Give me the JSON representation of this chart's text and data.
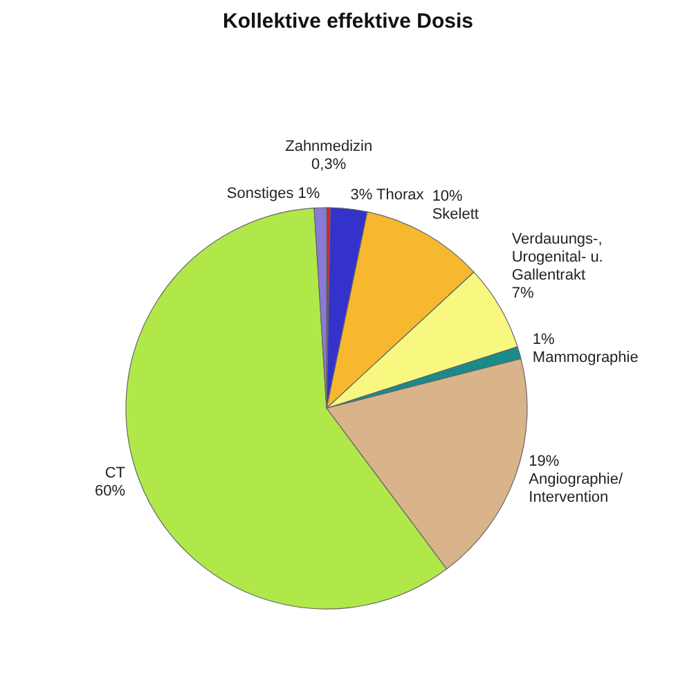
{
  "chart_data": {
    "type": "pie",
    "title": "Kollektive effektive Dosis",
    "categories": [
      "Zahnmedizin",
      "Thorax",
      "Skelett",
      "Verdauungs-, Urogenital- u. Gallentrakt",
      "Mammographie",
      "Angiographie/Intervention",
      "CT",
      "Sonstiges"
    ],
    "values": [
      0.3,
      3,
      10,
      7,
      1,
      19,
      60,
      1
    ],
    "value_labels": [
      "0,3%",
      "3%",
      "10%",
      "7%",
      "1%",
      "19%",
      "60%",
      "1%"
    ],
    "colors": [
      "#e0202a",
      "#3333cc",
      "#f5b82e",
      "#f8f880",
      "#1a8a8a",
      "#d9b48a",
      "#b0e84a",
      "#8a7ad8"
    ],
    "legend": false
  }
}
